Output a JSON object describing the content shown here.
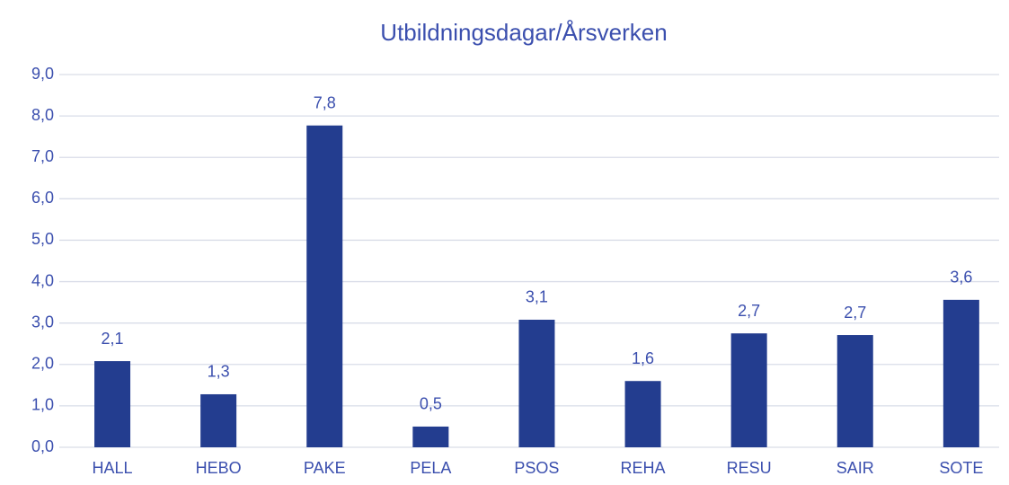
{
  "chart_data": {
    "type": "bar",
    "title": "Utbildningsdagar/Årsverken",
    "categories": [
      "HALL",
      "HEBO",
      "PAKE",
      "PELA",
      "PSOS",
      "REHA",
      "RESU",
      "SAIR",
      "SOTE"
    ],
    "values": [
      2.08,
      1.28,
      7.77,
      0.5,
      3.08,
      1.6,
      2.75,
      2.71,
      3.56
    ],
    "value_labels": [
      "2,1",
      "1,3",
      "7,8",
      "0,5",
      "3,1",
      "1,6",
      "2,7",
      "2,7",
      "3,6"
    ],
    "color": "#233d8f",
    "ylim": [
      0,
      9
    ],
    "yticks": [
      {
        "value": 0,
        "label": "0,0"
      },
      {
        "value": 1,
        "label": "1,0"
      },
      {
        "value": 2,
        "label": "2,0"
      },
      {
        "value": 3,
        "label": "3,0"
      },
      {
        "value": 4,
        "label": "4,0"
      },
      {
        "value": 5,
        "label": "5,0"
      },
      {
        "value": 6,
        "label": "6,0"
      },
      {
        "value": 7,
        "label": "7,0"
      },
      {
        "value": 8,
        "label": "8,0"
      },
      {
        "value": 9,
        "label": "9,0"
      }
    ],
    "grid": true
  }
}
